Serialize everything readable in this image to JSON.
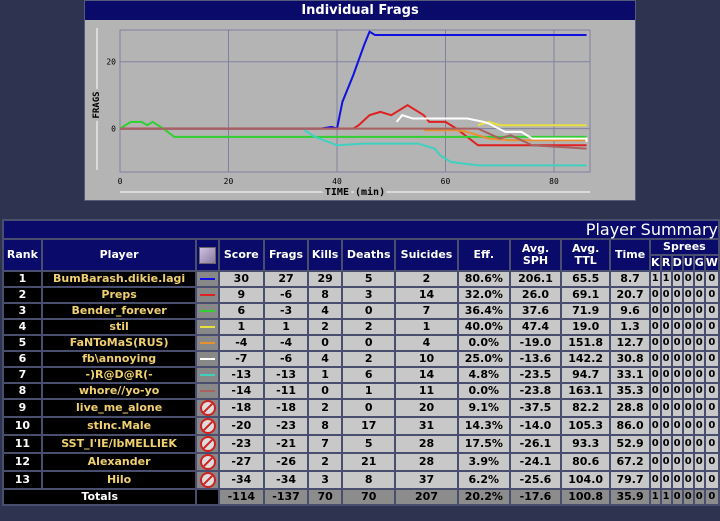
{
  "chart_title": "Individual Frags",
  "chart_data": {
    "type": "line",
    "title": "Individual Frags",
    "xlabel": "TIME (min)",
    "ylabel": "FRAGS",
    "xlim": [
      0,
      86
    ],
    "ylim": [
      -13,
      29.5
    ],
    "xticks": [
      0,
      20,
      40,
      60,
      80
    ],
    "yticks": [
      0,
      20
    ],
    "grid": true,
    "series": [
      {
        "name": "BumBarash.dikie.lagi",
        "color": "#1010e0",
        "points": [
          [
            0,
            0
          ],
          [
            37,
            0
          ],
          [
            39,
            0.5
          ],
          [
            40,
            0
          ],
          [
            41,
            8
          ],
          [
            43,
            16
          ],
          [
            45,
            25
          ],
          [
            46,
            29
          ],
          [
            47,
            28
          ],
          [
            86,
            28
          ]
        ]
      },
      {
        "name": "Preps",
        "color": "#e02020",
        "points": [
          [
            0,
            0
          ],
          [
            43,
            0
          ],
          [
            44,
            1
          ],
          [
            46,
            4
          ],
          [
            48,
            5
          ],
          [
            50,
            4
          ],
          [
            53,
            7
          ],
          [
            56,
            4
          ],
          [
            57,
            2
          ],
          [
            60,
            2
          ],
          [
            62,
            0
          ],
          [
            66,
            -5
          ],
          [
            86,
            -5
          ]
        ]
      },
      {
        "name": "Bender_forever",
        "color": "#30d030",
        "points": [
          [
            0,
            0
          ],
          [
            1,
            1
          ],
          [
            2,
            2
          ],
          [
            4,
            2
          ],
          [
            5,
            1
          ],
          [
            6,
            2
          ],
          [
            8,
            0
          ],
          [
            10,
            -2.5
          ],
          [
            86,
            -2.5
          ]
        ]
      },
      {
        "name": "stil",
        "color": "#e8e040",
        "points": [
          [
            66,
            1
          ],
          [
            68,
            2
          ],
          [
            70,
            1
          ],
          [
            86,
            1
          ]
        ]
      },
      {
        "name": "FaNToMaS(RUS)",
        "color": "#e89030",
        "points": [
          [
            56,
            -0.5
          ],
          [
            62,
            -0.5
          ],
          [
            64,
            -1
          ],
          [
            68,
            -3
          ],
          [
            72,
            -3.5
          ],
          [
            86,
            -3.5
          ]
        ]
      },
      {
        "name": "fb\\annoying",
        "color": "#ffffff",
        "points": [
          [
            51,
            2
          ],
          [
            52,
            4
          ],
          [
            54,
            3
          ],
          [
            64,
            3
          ],
          [
            67,
            2
          ],
          [
            68,
            1.5
          ],
          [
            71,
            -1
          ],
          [
            74,
            -1
          ],
          [
            76,
            -3
          ],
          [
            86,
            -3
          ],
          [
            86,
            -4
          ]
        ]
      },
      {
        "name": "-)R@D@R(-",
        "color": "#40d0c0",
        "points": [
          [
            34,
            -0.5
          ],
          [
            36,
            -2.5
          ],
          [
            40,
            -5
          ],
          [
            45,
            -4.5
          ],
          [
            55,
            -4.5
          ],
          [
            58,
            -6
          ],
          [
            59,
            -8
          ],
          [
            61,
            -10
          ],
          [
            66,
            -11
          ],
          [
            86,
            -11
          ]
        ]
      },
      {
        "name": "whore//yo-yo",
        "color": "#a86060",
        "points": [
          [
            0,
            0
          ],
          [
            66,
            0
          ],
          [
            70,
            -3
          ],
          [
            72,
            -2
          ],
          [
            76,
            -5
          ],
          [
            86,
            -6
          ]
        ]
      }
    ]
  },
  "summary": {
    "title": "Player Summary",
    "headers": [
      "Rank",
      "Player",
      "",
      "Score",
      "Frags",
      "Kills",
      "Deaths",
      "Suicides",
      "Eff.",
      "Avg. SPH",
      "Avg. TTL",
      "Time",
      "Sprees"
    ],
    "spree_cols": [
      "K",
      "R",
      "D",
      "U",
      "G",
      "W"
    ],
    "rows": [
      {
        "rank": "1",
        "player": "BumBarash.dikie.lagi",
        "icon": "#1010e0",
        "v": [
          "30",
          "27",
          "29",
          "5",
          "2",
          "80.6%",
          "206.1",
          "65.5",
          "8.7"
        ],
        "s": [
          "1",
          "1",
          "0",
          "0",
          "0",
          "0"
        ]
      },
      {
        "rank": "2",
        "player": "Preps",
        "icon": "#e02020",
        "v": [
          "9",
          "-6",
          "8",
          "3",
          "14",
          "32.0%",
          "26.0",
          "69.1",
          "20.7"
        ],
        "s": [
          "0",
          "0",
          "0",
          "0",
          "0",
          "0"
        ]
      },
      {
        "rank": "3",
        "player": "Bender_forever",
        "icon": "#30d030",
        "v": [
          "6",
          "-3",
          "4",
          "0",
          "7",
          "36.4%",
          "37.6",
          "71.9",
          "9.6"
        ],
        "s": [
          "0",
          "0",
          "0",
          "0",
          "0",
          "0"
        ]
      },
      {
        "rank": "4",
        "player": "stil",
        "icon": "#e8e040",
        "v": [
          "1",
          "1",
          "2",
          "2",
          "1",
          "40.0%",
          "47.4",
          "19.0",
          "1.3"
        ],
        "s": [
          "0",
          "0",
          "0",
          "0",
          "0",
          "0"
        ]
      },
      {
        "rank": "5",
        "player": "FaNToMaS(RUS)",
        "icon": "#e89030",
        "v": [
          "-4",
          "-4",
          "0",
          "0",
          "4",
          "0.0%",
          "-19.0",
          "151.8",
          "12.7"
        ],
        "s": [
          "0",
          "0",
          "0",
          "0",
          "0",
          "0"
        ]
      },
      {
        "rank": "6",
        "player": "fb\\annoying",
        "icon": "#ffffff",
        "v": [
          "-7",
          "-6",
          "4",
          "2",
          "10",
          "25.0%",
          "-13.6",
          "142.2",
          "30.8"
        ],
        "s": [
          "0",
          "0",
          "0",
          "0",
          "0",
          "0"
        ]
      },
      {
        "rank": "7",
        "player": "-)R@D@R(-",
        "icon": "#40d0c0",
        "v": [
          "-13",
          "-13",
          "1",
          "6",
          "14",
          "4.8%",
          "-23.5",
          "94.7",
          "33.1"
        ],
        "s": [
          "0",
          "0",
          "0",
          "0",
          "0",
          "0"
        ]
      },
      {
        "rank": "8",
        "player": "whore//yo-yo",
        "icon": "#a86060",
        "v": [
          "-14",
          "-11",
          "0",
          "1",
          "11",
          "0.0%",
          "-23.8",
          "163.1",
          "35.3"
        ],
        "s": [
          "0",
          "0",
          "0",
          "0",
          "0",
          "0"
        ]
      },
      {
        "rank": "9",
        "player": "live_me_alone",
        "icon": "none",
        "v": [
          "-18",
          "-18",
          "2",
          "0",
          "20",
          "9.1%",
          "-37.5",
          "82.2",
          "28.8"
        ],
        "s": [
          "0",
          "0",
          "0",
          "0",
          "0",
          "0"
        ]
      },
      {
        "rank": "10",
        "player": "stInc.Male",
        "icon": "none",
        "v": [
          "-20",
          "-23",
          "8",
          "17",
          "31",
          "14.3%",
          "-14.0",
          "105.3",
          "86.0"
        ],
        "s": [
          "0",
          "0",
          "0",
          "0",
          "0",
          "0"
        ]
      },
      {
        "rank": "11",
        "player": "SST_I'IE/lbMELLIEK",
        "icon": "none",
        "v": [
          "-23",
          "-21",
          "7",
          "5",
          "28",
          "17.5%",
          "-26.1",
          "93.3",
          "52.9"
        ],
        "s": [
          "0",
          "0",
          "0",
          "0",
          "0",
          "0"
        ]
      },
      {
        "rank": "12",
        "player": "Alexander",
        "icon": "none",
        "v": [
          "-27",
          "-26",
          "2",
          "21",
          "28",
          "3.9%",
          "-24.1",
          "80.6",
          "67.2"
        ],
        "s": [
          "0",
          "0",
          "0",
          "0",
          "0",
          "0"
        ]
      },
      {
        "rank": "13",
        "player": "Hilo",
        "icon": "none",
        "v": [
          "-34",
          "-34",
          "3",
          "8",
          "37",
          "6.2%",
          "-25.6",
          "104.0",
          "79.7"
        ],
        "s": [
          "0",
          "0",
          "0",
          "0",
          "0",
          "0"
        ]
      }
    ],
    "totals": {
      "label": "Totals",
      "v": [
        "-114",
        "-137",
        "70",
        "70",
        "207",
        "20.2%",
        "-17.6",
        "100.8",
        "35.9"
      ],
      "s": [
        "1",
        "1",
        "0",
        "0",
        "0",
        "0"
      ]
    }
  }
}
